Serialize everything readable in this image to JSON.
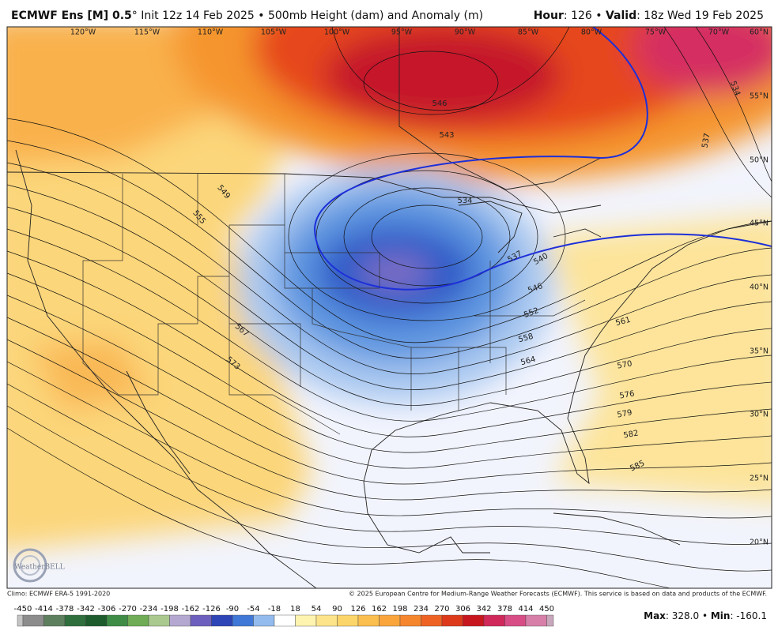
{
  "header": {
    "model": "ECMWF Ens [M] 0.5",
    "run": "° Init 12z 14 Feb 2025 • 500mb Height (dam) and Anomaly (m)",
    "hour_label": "Hour",
    "hour": ": 126 • ",
    "valid_label": "Valid",
    "valid": ": 18z Wed 19 Feb 2025"
  },
  "longitudes": [
    "120°W",
    "115°W",
    "110°W",
    "105°W",
    "100°W",
    "95°W",
    "90°W",
    "85°W",
    "80°W",
    "75°W",
    "70°W"
  ],
  "latitudes": [
    "60°N",
    "55°N",
    "50°N",
    "45°N",
    "40°N",
    "35°N",
    "30°N",
    "25°N",
    "20°N"
  ],
  "contour_labels": [
    546,
    543,
    534,
    537,
    549,
    555,
    534,
    537,
    540,
    546,
    552,
    558,
    564,
    561,
    567,
    573,
    570,
    576,
    579,
    582,
    585
  ],
  "logo": "WeatherBELL",
  "footer": {
    "climo": "Climo: ECMWF ERA-5 1991-2020",
    "copyright": "© 2025 European Centre for Medium-Range Weather Forecasts (ECMWF). This service is based on data and products of the ECMWF."
  },
  "colorbar": {
    "labels": [
      -450,
      -414,
      -378,
      -342,
      -306,
      -270,
      -234,
      -198,
      -162,
      -126,
      -90,
      -54,
      -18,
      18,
      54,
      90,
      126,
      162,
      198,
      234,
      270,
      306,
      342,
      378,
      414,
      450
    ],
    "colors": [
      "#c4c4c4",
      "#8c8c8c",
      "#5e7f5e",
      "#2f6f3e",
      "#1e5b2d",
      "#3e8c46",
      "#6fac55",
      "#a9c98e",
      "#b5a8d0",
      "#6d5fbd",
      "#2d45b6",
      "#3f78d6",
      "#93bbee",
      "#ffffff",
      "#fff3b0",
      "#fde48a",
      "#fcd56a",
      "#fbbf4f",
      "#f9a53c",
      "#f5862e",
      "#ee6324",
      "#dd3a1c",
      "#c8161e",
      "#d0285a",
      "#d84d86",
      "#d77fa8",
      "#c8a6bc"
    ]
  },
  "stats": {
    "max_label": "Max",
    "max": ": 328.0 • ",
    "min_label": "Min",
    "min": ": -160.1"
  }
}
